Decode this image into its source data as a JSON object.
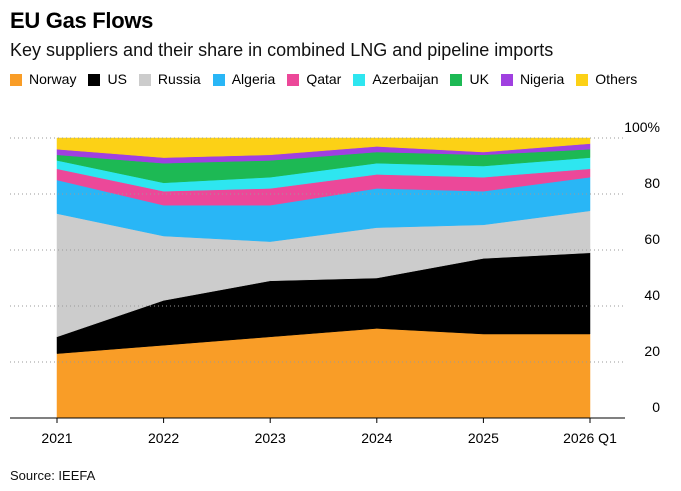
{
  "title": "EU Gas Flows",
  "subtitle": "Key suppliers and their share in combined LNG and pipeline imports",
  "source": "Source: IEEFA",
  "chart_data": {
    "type": "area",
    "stacked": true,
    "categories": [
      "2021",
      "2022",
      "2023",
      "2024",
      "2025",
      "2026 Q1"
    ],
    "y_ticks": [
      "0",
      "20",
      "40",
      "60",
      "80",
      "100%"
    ],
    "ylim": [
      0,
      100
    ],
    "grid": true,
    "legend_position": "top",
    "series": [
      {
        "name": "Norway",
        "color": "#f99d27",
        "values": [
          23,
          26,
          29,
          32,
          30,
          30
        ]
      },
      {
        "name": "US",
        "color": "#000000",
        "values": [
          6,
          16,
          20,
          18,
          27,
          29
        ]
      },
      {
        "name": "Russia",
        "color": "#cccccc",
        "values": [
          44,
          23,
          14,
          18,
          12,
          15
        ]
      },
      {
        "name": "Algeria",
        "color": "#29b6f6",
        "values": [
          12,
          11,
          13,
          14,
          12,
          12
        ]
      },
      {
        "name": "Qatar",
        "color": "#ec4899",
        "values": [
          4,
          5,
          6,
          5,
          5,
          3
        ]
      },
      {
        "name": "Azerbaijan",
        "color": "#2ee6f0",
        "values": [
          3,
          3,
          4,
          4,
          4,
          4
        ]
      },
      {
        "name": "UK",
        "color": "#1db954",
        "values": [
          2,
          7,
          6,
          4,
          4,
          3
        ]
      },
      {
        "name": "Nigeria",
        "color": "#a040e0",
        "values": [
          2,
          2,
          2,
          2,
          1,
          2
        ]
      },
      {
        "name": "Others",
        "color": "#fcd116",
        "values": [
          4,
          7,
          6,
          3,
          5,
          2
        ]
      }
    ]
  }
}
